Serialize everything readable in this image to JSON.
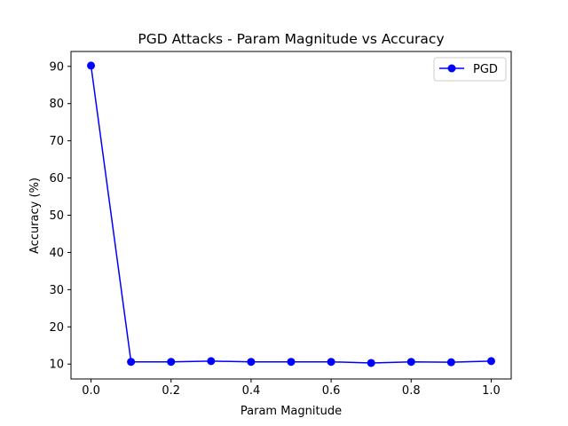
{
  "chart_data": {
    "type": "line",
    "title": "PGD Attacks - Param Magnitude vs Accuracy",
    "xlabel": "Param Magnitude",
    "ylabel": "Accuracy (%)",
    "xlim": [
      -0.05,
      1.05
    ],
    "ylim": [
      6.0,
      94.0
    ],
    "x_ticks": [
      0.0,
      0.2,
      0.4,
      0.6,
      0.8,
      1.0
    ],
    "x_tick_labels": [
      "0.0",
      "0.2",
      "0.4",
      "0.6",
      "0.8",
      "1.0"
    ],
    "y_ticks": [
      10,
      20,
      30,
      40,
      50,
      60,
      70,
      80,
      90
    ],
    "y_tick_labels": [
      "10",
      "20",
      "30",
      "40",
      "50",
      "60",
      "70",
      "80",
      "90"
    ],
    "grid": false,
    "legend_position": "top-right",
    "series": [
      {
        "name": "PGD",
        "color": "#0000ff",
        "marker": "circle",
        "x": [
          0.0,
          0.1,
          0.2,
          0.3,
          0.4,
          0.5,
          0.6,
          0.7,
          0.8,
          0.9,
          1.0
        ],
        "y": [
          90.2,
          10.6,
          10.6,
          10.8,
          10.6,
          10.6,
          10.6,
          10.3,
          10.6,
          10.5,
          10.8
        ]
      }
    ]
  }
}
